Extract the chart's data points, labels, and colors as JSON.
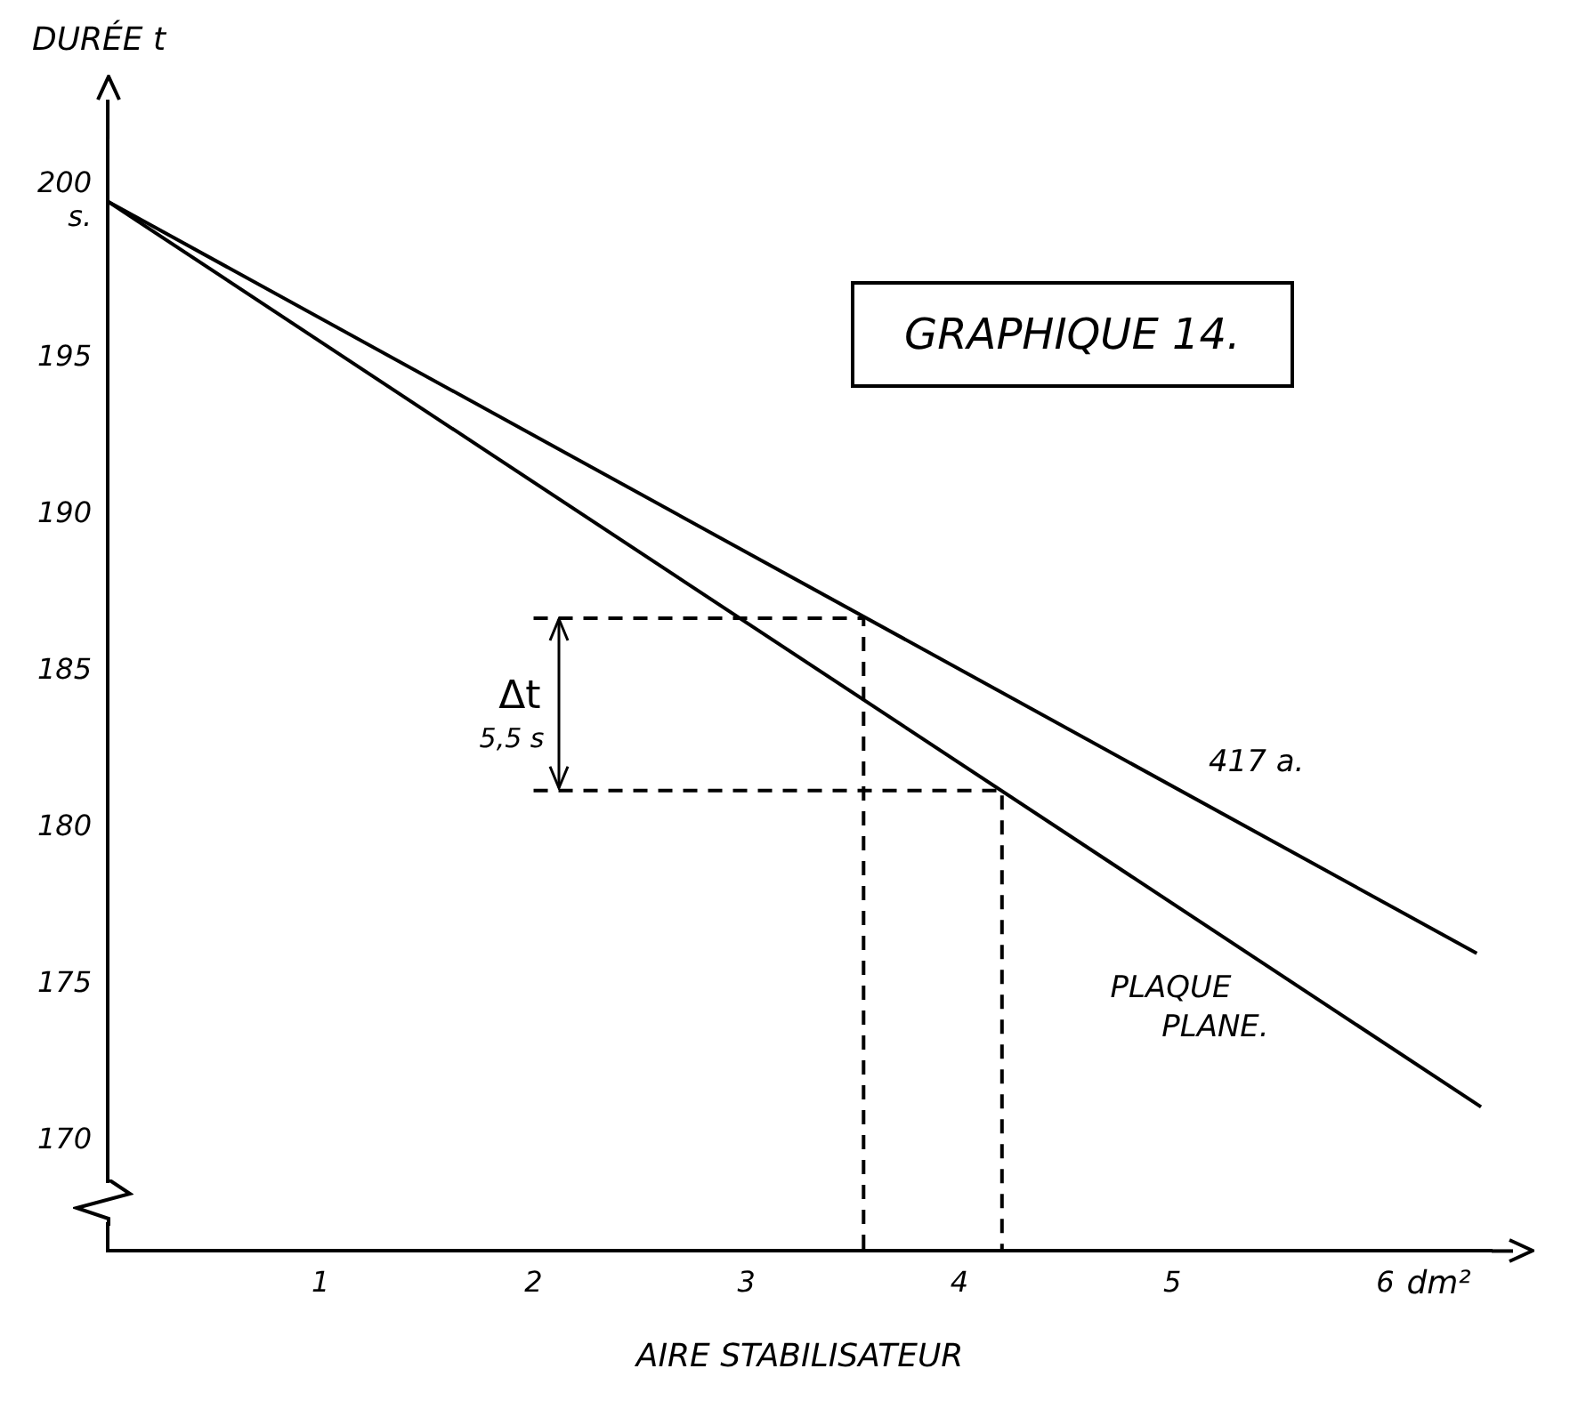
{
  "chart_data": {
    "type": "line",
    "title": "GRAPHIQUE 14.",
    "xlabel": "AIRE STABILISATEUR",
    "ylabel": "DURÉE t",
    "xlim": [
      0,
      6.5
    ],
    "xticks": [
      1,
      2,
      3,
      4,
      5,
      6
    ],
    "ylim": [
      166.5,
      202
    ],
    "yticks": [
      {
        "value": 200,
        "label": "200 s."
      },
      195,
      190,
      185,
      180,
      175,
      170
    ],
    "series": [
      {
        "name": "417 a.",
        "color": "#000000",
        "x": [
          0,
          6.43
        ],
        "values": [
          200,
          176.0
        ]
      },
      {
        "name": "PLAQUE PLANE.",
        "color": "#000000",
        "x": [
          0,
          6.45
        ],
        "values": [
          200,
          171.1
        ]
      },
      {
        "color": "#000000",
        "line_style": "dashed",
        "x": [
          2.0,
          3.55,
          3.55
        ],
        "values": [
          186.7,
          186.7,
          166.5
        ]
      },
      {
        "color": "#000000",
        "line_style": "dashed",
        "x": [
          2.0,
          4.2,
          4.2
        ],
        "values": [
          181.2,
          181.2,
          166.5
        ]
      }
    ],
    "annotations": [
      "Δt",
      "5,5 s",
      "dm²"
    ],
    "grid": false,
    "legend": false,
    "marker": "none"
  }
}
